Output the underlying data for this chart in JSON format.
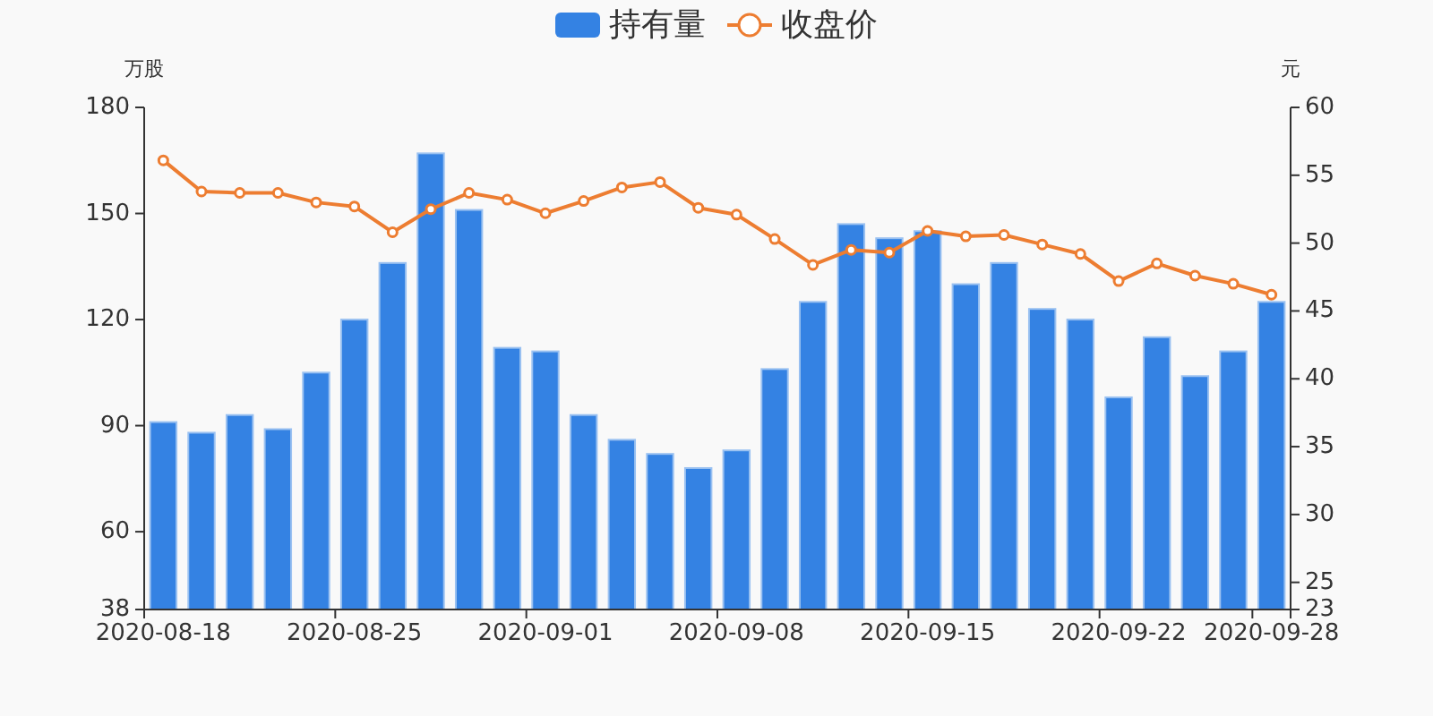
{
  "chart_data": {
    "type": "bar",
    "categories": [
      "2020-08-18",
      null,
      null,
      null,
      null,
      "2020-08-25",
      null,
      null,
      null,
      null,
      "2020-09-01",
      null,
      null,
      null,
      null,
      "2020-09-08",
      null,
      null,
      null,
      null,
      "2020-09-15",
      null,
      null,
      null,
      null,
      "2020-09-22",
      null,
      null,
      null,
      "2020-09-28"
    ],
    "series": [
      {
        "name": "持有量",
        "color": "#3482e3",
        "values": [
          91,
          88,
          93,
          89,
          105,
          120,
          136,
          167,
          151,
          112,
          111,
          93,
          86,
          82,
          78,
          83,
          106,
          125,
          147,
          143,
          145,
          130,
          136,
          123,
          120,
          98,
          115,
          104,
          111,
          125
        ]
      },
      {
        "name": "收盘价",
        "type": "line",
        "axis": "y2",
        "color": "#ed7d31",
        "values": [
          56.1,
          53.8,
          53.7,
          53.7,
          53.0,
          52.7,
          50.8,
          52.5,
          53.7,
          53.2,
          52.2,
          53.1,
          54.1,
          54.5,
          52.6,
          52.1,
          50.3,
          48.4,
          49.5,
          49.3,
          50.9,
          50.5,
          50.6,
          49.9,
          49.2,
          47.2,
          48.5,
          47.6,
          47.0,
          46.2
        ]
      }
    ],
    "ylabel": "万股",
    "y2label": "元",
    "ylim": [
      38,
      180
    ],
    "yticks": [
      38,
      60,
      90,
      120,
      150,
      180
    ],
    "y2lim": [
      23,
      60
    ],
    "y2ticks": [
      23,
      25,
      30,
      35,
      40,
      45,
      50,
      55,
      60
    ],
    "legend": "top",
    "marker": "circle"
  }
}
